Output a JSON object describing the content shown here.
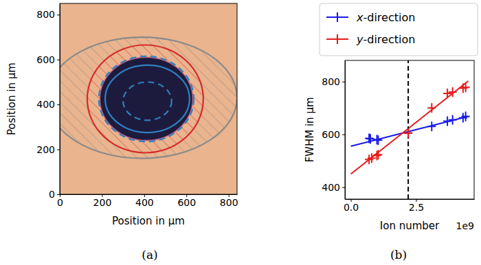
{
  "chart_data": [
    {
      "type": "image",
      "caption": "(a)",
      "x_label": "Position in μm",
      "y_label": "Position in μm",
      "xlim": [
        0,
        840
      ],
      "ylim": [
        0,
        850
      ],
      "xticks": [
        0,
        200,
        400,
        600,
        800
      ],
      "yticks": [
        0,
        200,
        400,
        600,
        800
      ],
      "color": "#e9b48e",
      "dark_region": {
        "cx": 410,
        "cy": 425,
        "rx": 220,
        "ry": 185,
        "color": "#1d1b3d"
      },
      "ellipses": [
        {
          "cx": 390,
          "cy": 430,
          "rx": 450,
          "ry": 270,
          "color": "#8a8a8a",
          "line_style": "solid"
        },
        {
          "cx": 405,
          "cy": 425,
          "rx": 275,
          "ry": 240,
          "color": "#d42a2a",
          "line_style": "solid"
        },
        {
          "cx": 410,
          "cy": 425,
          "rx": 225,
          "ry": 190,
          "color": "#2f7fbf",
          "line_style": "dashed"
        },
        {
          "cx": 415,
          "cy": 425,
          "rx": 200,
          "ry": 150,
          "color": "#2f7fbf",
          "line_style": "solid"
        },
        {
          "cx": 415,
          "cy": 415,
          "rx": 115,
          "ry": 85,
          "color": "#2f7fbf",
          "line_style": "dashed"
        }
      ]
    },
    {
      "type": "scatter",
      "caption": "(b)",
      "x_label": "Ion number",
      "x_offset_label": "1e9",
      "y_label": "FWHM in μm",
      "xlim": [
        -0.225,
        4.725
      ],
      "ylim": [
        355,
        880
      ],
      "xticks": [
        {
          "value": 0,
          "label": "0.0"
        },
        {
          "value": 2.5,
          "label": "2.5"
        }
      ],
      "yticks": [
        400,
        600,
        800
      ],
      "legend": "above",
      "series": [
        {
          "name": "x-direction",
          "color": "#1a1ae6",
          "marker": "plus",
          "x": [
            0.7,
            0.75,
            1.0,
            1.05,
            2.2,
            3.1,
            3.7,
            3.9,
            4.3,
            4.4
          ],
          "values": [
            585,
            583,
            580,
            578,
            605,
            630,
            650,
            655,
            663,
            668
          ]
        },
        {
          "name": "y-direction",
          "color": "#e61a1a",
          "marker": "plus",
          "x": [
            0.7,
            0.8,
            1.0,
            1.05,
            2.2,
            3.1,
            3.7,
            3.9,
            4.3,
            4.4
          ],
          "values": [
            505,
            510,
            520,
            523,
            605,
            700,
            755,
            760,
            775,
            778
          ]
        },
        {
          "type": "line",
          "color": "#1a1ae6",
          "x": [
            0,
            4.5
          ],
          "values": [
            555,
            668
          ]
        },
        {
          "type": "line",
          "color": "#e61a1a",
          "x": [
            0,
            4.5
          ],
          "values": [
            450,
            802
          ]
        },
        {
          "type": "line",
          "color": "#000000",
          "line_style": "dashed",
          "x": [
            2.2,
            2.2
          ],
          "values": [
            355,
            880
          ]
        }
      ]
    }
  ]
}
